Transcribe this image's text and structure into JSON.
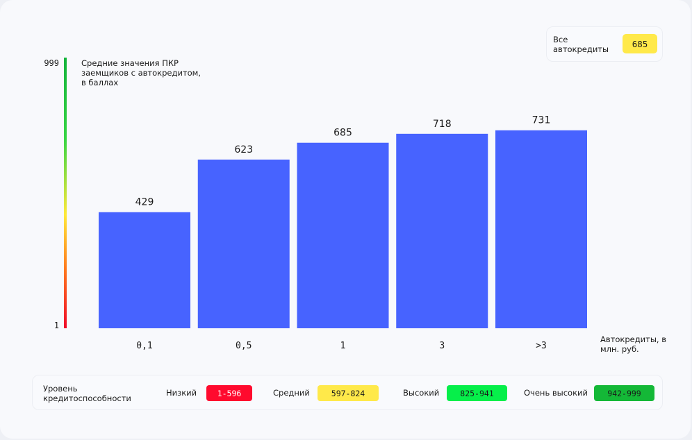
{
  "summary": {
    "label": "Все автокредиты",
    "value": "685",
    "color": "#ffe94a"
  },
  "colors": {
    "bar": "#4763ff"
  },
  "chart_data": {
    "type": "bar",
    "title": "",
    "ylabel": "Средние значения ПКР заемщиков с автокредитом, в баллах",
    "xlabel": "Автокредиты, в млн. руб.",
    "categories": [
      "0,1",
      "0,5",
      "1",
      "3",
      ">3"
    ],
    "values": [
      429,
      623,
      685,
      718,
      731
    ],
    "ylim": [
      1,
      999
    ],
    "scale_ticks": [
      "999",
      "1"
    ],
    "grid": false
  },
  "legend": {
    "title": "Уровень кредитоспособности",
    "items": [
      {
        "label": "Низкий",
        "range": "1-596",
        "color": "#ff0a2e"
      },
      {
        "label": "Средний",
        "range": "597-824",
        "color": "#ffe94a"
      },
      {
        "label": "Высокий",
        "range": "825-941",
        "color": "#06ef4a"
      },
      {
        "label": "Очень высокий",
        "range": "942-999",
        "color": "#14b837"
      }
    ]
  }
}
